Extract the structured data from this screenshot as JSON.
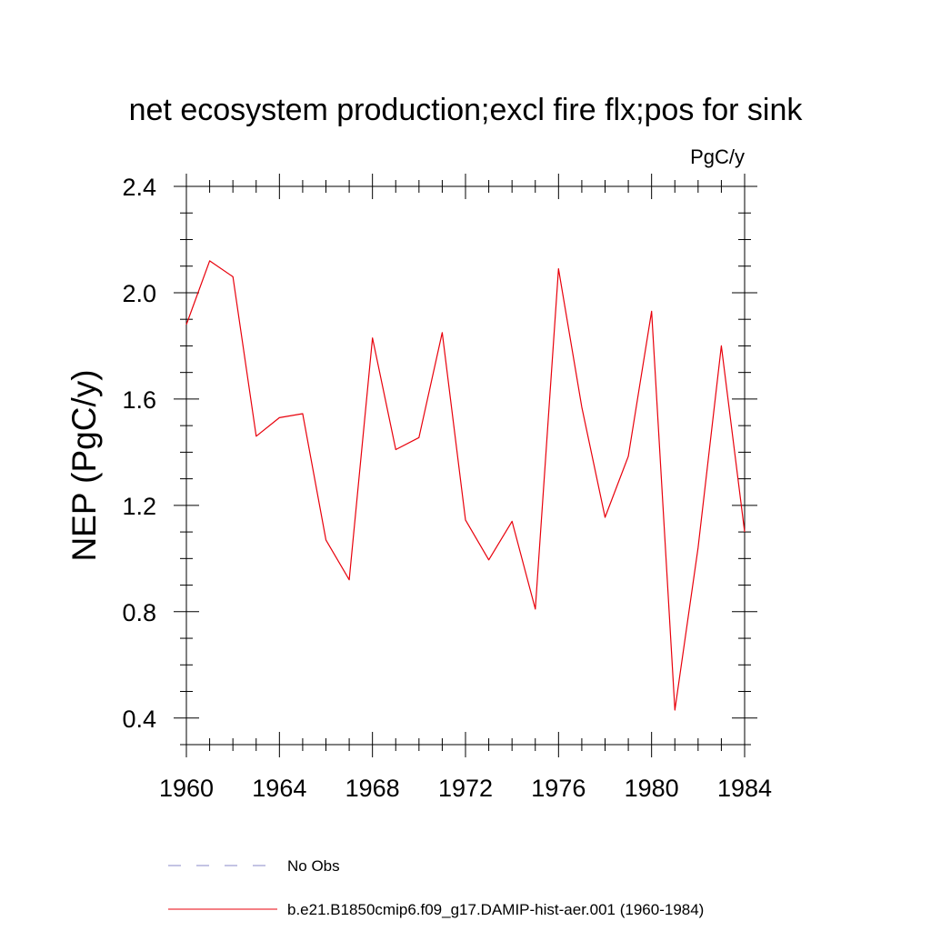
{
  "chart_data": {
    "type": "line",
    "title": "net ecosystem production;excl fire flx;pos for sink",
    "units": "PgC/y",
    "ylabel": "NEP  (PgC/y)",
    "xlabel": "",
    "xlim": [
      1960,
      1984
    ],
    "ylim": [
      0.3,
      2.4
    ],
    "x_ticks": [
      "1960",
      "1964",
      "1968",
      "1972",
      "1976",
      "1980",
      "1984"
    ],
    "x_tick_values": [
      1960,
      1964,
      1968,
      1972,
      1976,
      1980,
      1984
    ],
    "y_ticks": [
      "0.4",
      "0.8",
      "1.2",
      "1.6",
      "2.0",
      "2.4"
    ],
    "y_tick_values": [
      0.4,
      0.8,
      1.2,
      1.6,
      2.0,
      2.4
    ],
    "grid": false,
    "legend_position": "bottom-left",
    "series": [
      {
        "name": "b.e21.B1850cmip6.f09_g17.DAMIP-hist-aer.001 (1960-1984)",
        "color": "#e8000b",
        "style": "solid",
        "x": [
          1960,
          1961,
          1962,
          1963,
          1964,
          1965,
          1966,
          1967,
          1968,
          1969,
          1970,
          1971,
          1972,
          1973,
          1974,
          1975,
          1976,
          1977,
          1978,
          1979,
          1980,
          1981,
          1982,
          1983,
          1984
        ],
        "values": [
          1.88,
          2.12,
          2.06,
          1.46,
          1.53,
          1.545,
          1.07,
          0.92,
          1.83,
          1.41,
          1.455,
          1.85,
          1.145,
          0.995,
          1.14,
          0.81,
          2.09,
          1.57,
          1.155,
          1.385,
          1.93,
          0.43,
          1.04,
          1.8,
          1.1
        ]
      }
    ],
    "legend": [
      {
        "label": "No Obs",
        "color": "#8a88c8",
        "style": "dashed"
      },
      {
        "label": "b.e21.B1850cmip6.f09_g17.DAMIP-hist-aer.001 (1960-1984)",
        "color": "#e8000b",
        "style": "solid"
      }
    ]
  }
}
